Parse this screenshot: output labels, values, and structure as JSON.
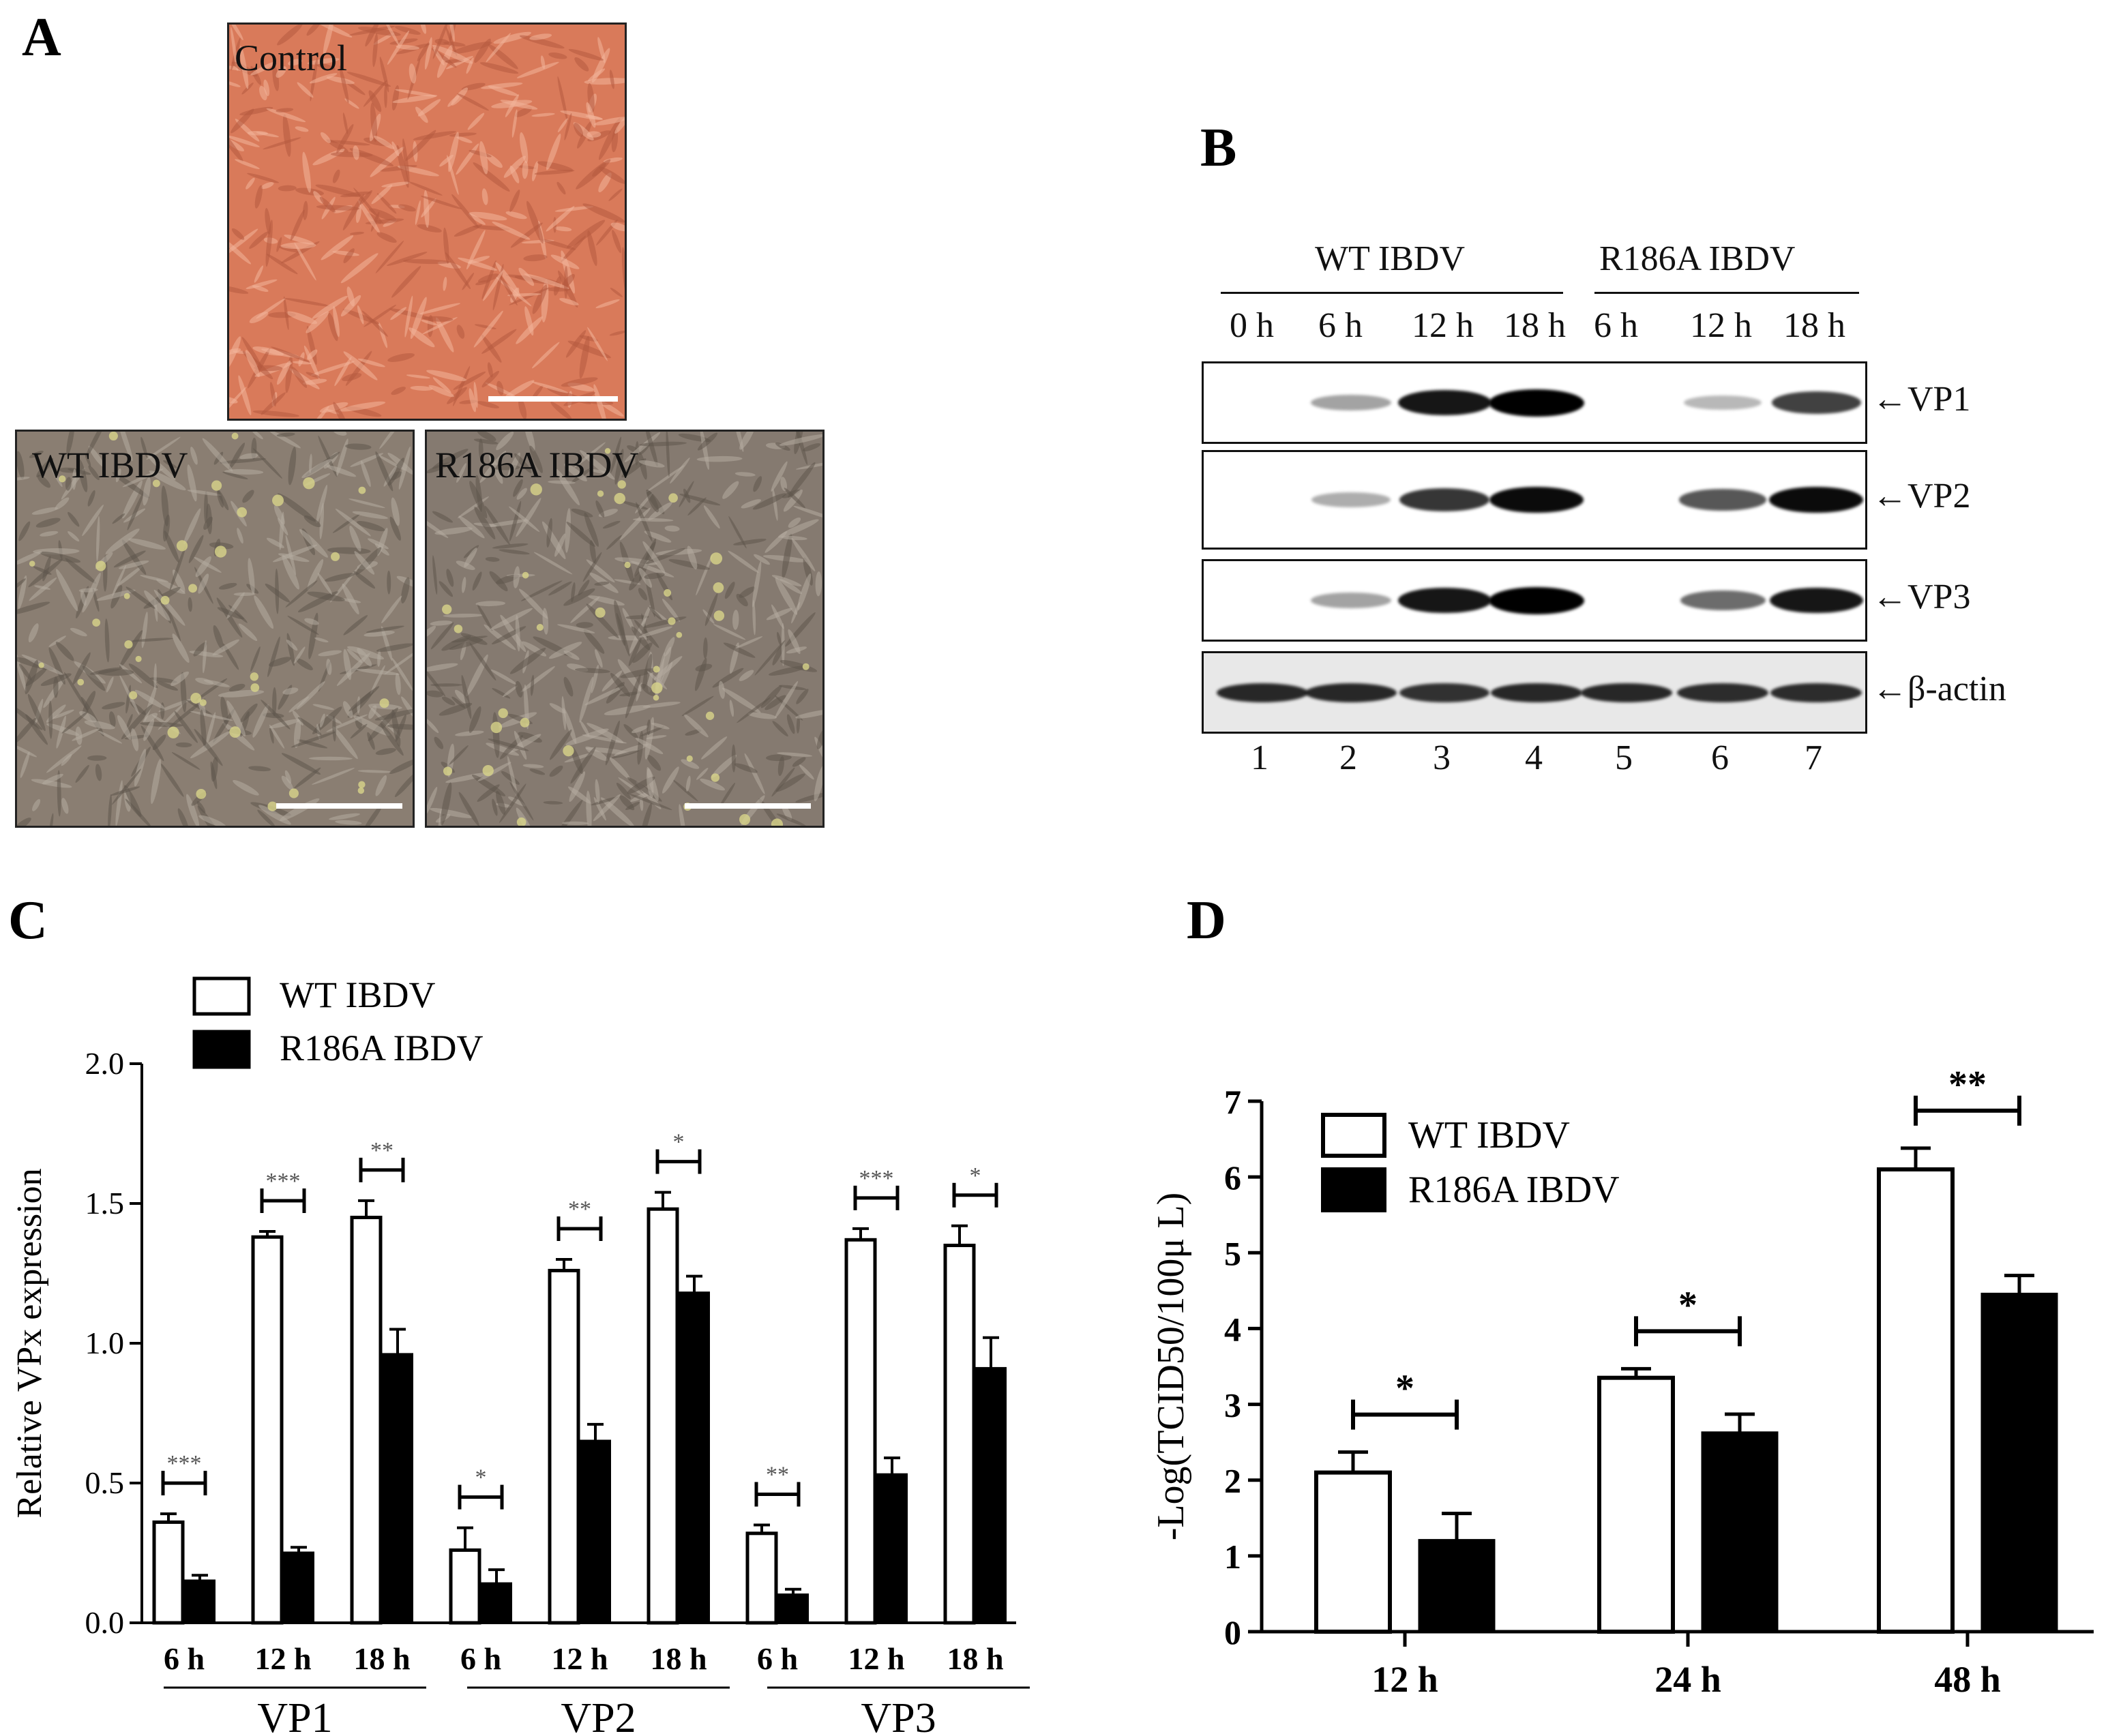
{
  "panels": {
    "A": {
      "letter": "A",
      "images": [
        {
          "label": "Control",
          "color": "#d97a5a"
        },
        {
          "label": "WT  IBDV",
          "color": "#8a7e72"
        },
        {
          "label": "R186A  IBDV",
          "color": "#857a70"
        }
      ]
    },
    "B": {
      "letter": "B",
      "groups": [
        "WT  IBDV",
        "R186A  IBDV"
      ],
      "timepoints": [
        "0 h",
        "6 h",
        "12 h",
        "18 h",
        "6 h",
        "12 h",
        "18 h"
      ],
      "lanes": [
        "1",
        "2",
        "3",
        "4",
        "5",
        "6",
        "7"
      ],
      "proteins": [
        "VP1",
        "VP2",
        "VP3",
        "β-actin"
      ],
      "arrow": "←",
      "band_intensity": {
        "VP1": [
          0,
          0.25,
          0.9,
          1.0,
          0,
          0.15,
          0.7
        ],
        "VP2": [
          0,
          0.2,
          0.75,
          0.95,
          0,
          0.6,
          0.95
        ],
        "VP3": [
          0,
          0.25,
          0.9,
          1.0,
          0,
          0.5,
          0.9
        ],
        "β-actin": [
          0.8,
          0.8,
          0.75,
          0.8,
          0.8,
          0.78,
          0.78
        ]
      }
    },
    "C": {
      "letter": "C"
    },
    "D": {
      "letter": "D"
    }
  },
  "chart_data": [
    {
      "type": "bar",
      "panel": "C",
      "ylabel": "Relative VPx expression",
      "ylim": [
        0,
        2.0
      ],
      "yticks": [
        "0.0",
        "0.5",
        "1.0",
        "1.5",
        "2.0"
      ],
      "legend": [
        "WT IBDV",
        "R186A IBDV"
      ],
      "legend_position": "top-left",
      "categories": [
        "6 h",
        "12 h",
        "18 h",
        "6 h",
        "12 h",
        "18 h",
        "6 h",
        "12 h",
        "18 h"
      ],
      "groups": [
        "VP1",
        "VP2",
        "VP3"
      ],
      "series": [
        {
          "name": "WT IBDV",
          "fill": "#ffffff",
          "values": [
            0.36,
            1.38,
            1.45,
            0.26,
            1.26,
            1.48,
            0.32,
            1.37,
            1.35
          ],
          "errors": [
            0.03,
            0.02,
            0.06,
            0.08,
            0.04,
            0.06,
            0.03,
            0.04,
            0.07
          ]
        },
        {
          "name": "R186A IBDV",
          "fill": "#000000",
          "values": [
            0.15,
            0.25,
            0.96,
            0.14,
            0.65,
            1.18,
            0.1,
            0.53,
            0.91
          ],
          "errors": [
            0.02,
            0.02,
            0.09,
            0.05,
            0.06,
            0.06,
            0.02,
            0.06,
            0.11
          ]
        }
      ],
      "significance": [
        "***",
        "***",
        "**",
        "*",
        "**",
        "*",
        "**",
        "***",
        "*"
      ]
    },
    {
      "type": "bar",
      "panel": "D",
      "ylabel": "-Log(TCID50/100μ L)",
      "ylim": [
        0,
        7
      ],
      "yticks": [
        "0",
        "1",
        "2",
        "3",
        "4",
        "5",
        "6",
        "7"
      ],
      "legend": [
        "WT IBDV",
        "R186A IBDV"
      ],
      "legend_position": "top-left",
      "categories": [
        "12 h",
        "24 h",
        "48 h"
      ],
      "series": [
        {
          "name": "WT IBDV",
          "fill": "#ffffff",
          "values": [
            2.1,
            3.35,
            6.1
          ],
          "errors": [
            0.27,
            0.12,
            0.28
          ]
        },
        {
          "name": "R186A IBDV",
          "fill": "#000000",
          "values": [
            1.2,
            2.62,
            4.45
          ],
          "errors": [
            0.36,
            0.25,
            0.25
          ]
        }
      ],
      "significance": [
        "*",
        "*",
        "**"
      ]
    }
  ]
}
